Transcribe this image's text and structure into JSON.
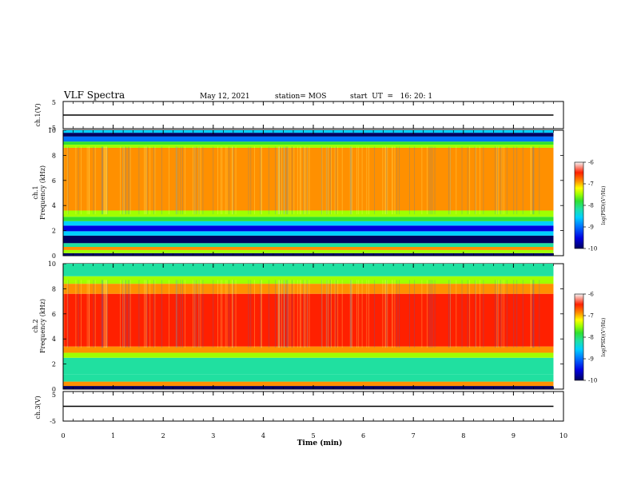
{
  "header": {
    "title": "VLF Spectra",
    "date": "May 12, 2021",
    "station": "station= MOS",
    "start": "start  UT  =   16: 20: 1"
  },
  "chart_data": [
    {
      "type": "line",
      "panel": "ch1-waveform",
      "ylabel": "ch.1(V)",
      "ylim": [
        -5,
        5
      ],
      "yticks": [
        "5",
        "-5"
      ],
      "series": [
        {
          "x": [
            0,
            9.8
          ],
          "y": [
            0,
            0
          ]
        }
      ]
    },
    {
      "type": "heatmap",
      "panel": "ch1-spectrogram",
      "ylabel_line1": "ch.1",
      "ylabel_line2": "Frequency (kHz)",
      "ylim": [
        0,
        10
      ],
      "yticks": [
        "0",
        "2",
        "4",
        "6",
        "8",
        "10"
      ],
      "colorbar": {
        "label": "log(PSD)(V²/Hz)",
        "ticks": [
          "-6",
          "-7",
          "-8",
          "-9",
          "-10"
        ],
        "range": [
          -10,
          -6
        ]
      },
      "bands": [
        {
          "f0": 0.0,
          "f1": 0.2,
          "level": -10
        },
        {
          "f0": 0.2,
          "f1": 0.45,
          "level": -7.8
        },
        {
          "f0": 0.45,
          "f1": 0.7,
          "level": -6.9
        },
        {
          "f0": 0.7,
          "f1": 1.0,
          "level": -8.6
        },
        {
          "f0": 1.0,
          "f1": 1.6,
          "level": -9.8
        },
        {
          "f0": 1.6,
          "f1": 1.95,
          "level": -9.0
        },
        {
          "f0": 1.95,
          "f1": 2.4,
          "level": -9.5
        },
        {
          "f0": 2.4,
          "f1": 2.75,
          "level": -8.9
        },
        {
          "f0": 2.75,
          "f1": 3.1,
          "level": -8.2
        },
        {
          "f0": 3.1,
          "f1": 3.6,
          "level": -7.5
        },
        {
          "f0": 3.6,
          "f1": 8.6,
          "level": -6.9
        },
        {
          "f0": 8.6,
          "f1": 8.85,
          "level": -7.5
        },
        {
          "f0": 8.85,
          "f1": 9.1,
          "level": -8.2
        },
        {
          "f0": 9.1,
          "f1": 9.5,
          "level": -9.3
        },
        {
          "f0": 9.5,
          "f1": 9.8,
          "level": -9.8
        },
        {
          "f0": 9.8,
          "f1": 10.0,
          "level": -9.0
        }
      ]
    },
    {
      "type": "heatmap",
      "panel": "ch2-spectrogram",
      "ylabel_line1": "ch.2",
      "ylabel_line2": "Frequency (kHz)",
      "ylim": [
        0,
        10
      ],
      "yticks": [
        "0",
        "2",
        "4",
        "6",
        "8",
        "10"
      ],
      "colorbar": {
        "label": "log(PSD)(V²/Hz)",
        "ticks": [
          "-6",
          "-7",
          "-8",
          "-9",
          "-10"
        ],
        "range": [
          -10,
          -6
        ]
      },
      "bands": [
        {
          "f0": 0.0,
          "f1": 0.25,
          "level": -10
        },
        {
          "f0": 0.25,
          "f1": 0.6,
          "level": -7.0
        },
        {
          "f0": 0.6,
          "f1": 1.2,
          "level": -8.3
        },
        {
          "f0": 1.2,
          "f1": 2.5,
          "level": -8.5
        },
        {
          "f0": 2.5,
          "f1": 2.9,
          "level": -7.8
        },
        {
          "f0": 2.9,
          "f1": 3.4,
          "level": -7.0
        },
        {
          "f0": 3.4,
          "f1": 7.6,
          "level": -6.3
        },
        {
          "f0": 7.6,
          "f1": 8.4,
          "level": -7.0
        },
        {
          "f0": 8.4,
          "f1": 9.0,
          "level": -7.7
        },
        {
          "f0": 9.0,
          "f1": 10.0,
          "level": -8.3
        }
      ]
    },
    {
      "type": "line",
      "panel": "ch3-waveform",
      "ylabel": "ch.3(V)",
      "ylim": [
        -5,
        5
      ],
      "yticks": [
        "5",
        "-5"
      ],
      "series": [
        {
          "x": [
            0,
            9.8
          ],
          "y": [
            0,
            0
          ]
        }
      ]
    }
  ],
  "xaxis": {
    "label": "Time (min)",
    "range": [
      0,
      10
    ],
    "ticks": [
      "0",
      "1",
      "2",
      "3",
      "4",
      "5",
      "6",
      "7",
      "8",
      "9",
      "10"
    ],
    "data_end": 9.8
  },
  "colormap": [
    "#000060",
    "#0000e0",
    "#0070ff",
    "#00d0ff",
    "#20e0a0",
    "#30e030",
    "#a0ff00",
    "#ffff00",
    "#ff9000",
    "#ff2000",
    "#f0f0f0"
  ]
}
